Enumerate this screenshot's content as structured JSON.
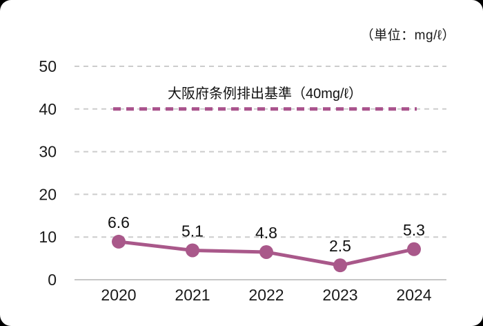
{
  "unit_note": "（単位：mg/ℓ）",
  "chart_data": {
    "type": "line",
    "title": "",
    "unit_label": "（単位：mg/ℓ）",
    "categories": [
      "2020",
      "2021",
      "2022",
      "2023",
      "2024"
    ],
    "values": [
      6.6,
      5.1,
      4.8,
      2.5,
      5.3
    ],
    "data_labels": [
      "6.6",
      "5.1",
      "4.8",
      "2.5",
      "5.3"
    ],
    "xlabel": "",
    "ylabel": "",
    "ylim": [
      0,
      50
    ],
    "y_ticks": [
      0,
      10,
      20,
      30,
      40,
      50
    ],
    "grid": true,
    "legend": "none",
    "reference_line": {
      "value": 40,
      "label": "大阪府条例排出基準（40mg/ℓ）"
    },
    "colors": {
      "series": "#a9588a",
      "reference": "#a9528c",
      "gridline": "#cccccc",
      "axis": "#c6c6c6",
      "text": "#1a1a1a"
    }
  }
}
